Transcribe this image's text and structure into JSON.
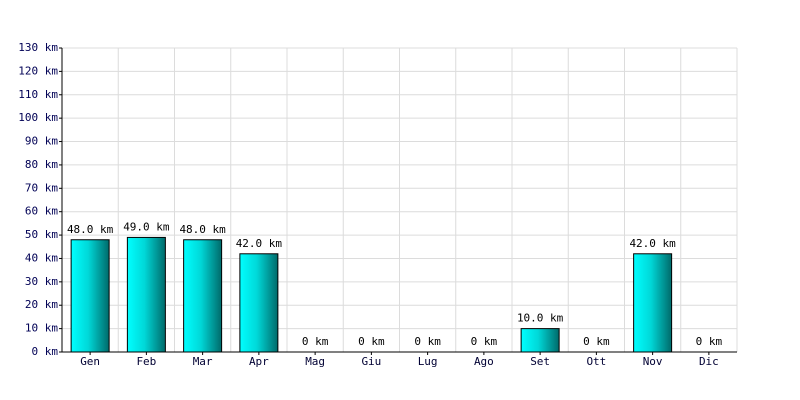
{
  "chart_data": {
    "type": "bar",
    "categories": [
      "Gen",
      "Feb",
      "Mar",
      "Apr",
      "Mag",
      "Giu",
      "Lug",
      "Ago",
      "Set",
      "Ott",
      "Nov",
      "Dic"
    ],
    "values": [
      48,
      49,
      48,
      42,
      0,
      0,
      0,
      0,
      10,
      0,
      42,
      0
    ],
    "value_labels": [
      "48.0 km",
      "49.0 km",
      "48.0 km",
      "42.0 km",
      "0 km",
      "0 km",
      "0 km",
      "0 km",
      "10.0 km",
      "0 km",
      "42.0 km",
      "0 km"
    ],
    "color": "#00cccc",
    "ylim": [
      0,
      130
    ],
    "yticks": [
      {
        "value": 0,
        "label": "0 km"
      },
      {
        "value": 10,
        "label": "10 km"
      },
      {
        "value": 20,
        "label": "20 km"
      },
      {
        "value": 30,
        "label": "30 km"
      },
      {
        "value": 40,
        "label": "40 km"
      },
      {
        "value": 50,
        "label": "50 km"
      },
      {
        "value": 60,
        "label": "60 km"
      },
      {
        "value": 70,
        "label": "70 km"
      },
      {
        "value": 80,
        "label": "80 km"
      },
      {
        "value": 90,
        "label": "90 km"
      },
      {
        "value": 100,
        "label": "100 km"
      },
      {
        "value": 110,
        "label": "110 km"
      },
      {
        "value": 120,
        "label": "120 km"
      },
      {
        "value": 130,
        "label": "130 km"
      }
    ],
    "grid": true
  }
}
